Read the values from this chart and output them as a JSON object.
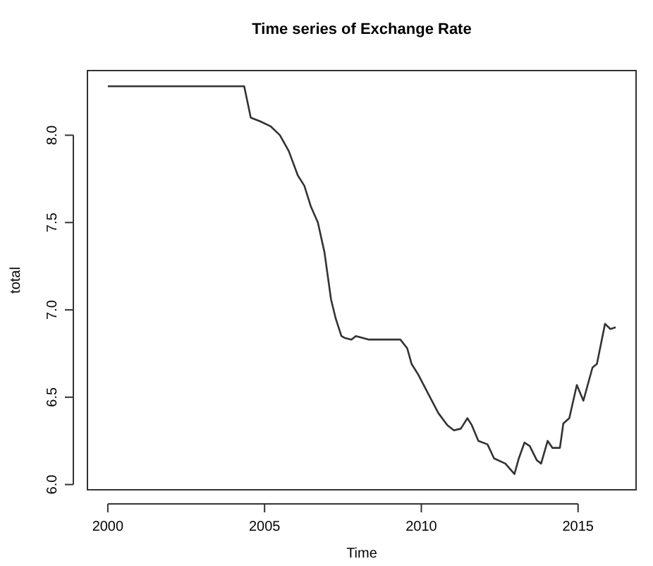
{
  "chart_data": {
    "type": "line",
    "title": "Time series of Exchange Rate",
    "xlabel": "Time",
    "ylabel": "total",
    "x": [
      2000,
      2004.35,
      2004.56,
      2004.85,
      2005.2,
      2005.49,
      2005.77,
      2006.06,
      2006.27,
      2006.48,
      2006.7,
      2006.91,
      2007.12,
      2007.27,
      2007.45,
      2007.55,
      2007.77,
      2007.91,
      2008.33,
      2009.33,
      2009.55,
      2009.69,
      2009.9,
      2010.19,
      2010.54,
      2010.83,
      2011.04,
      2011.26,
      2011.47,
      2011.61,
      2011.82,
      2012.11,
      2012.32,
      2012.68,
      2012.97,
      2013.11,
      2013.29,
      2013.46,
      2013.68,
      2013.82,
      2014.03,
      2014.18,
      2014.42,
      2014.53,
      2014.72,
      2014.96,
      2015.17,
      2015.46,
      2015.6,
      2015.86,
      2016.03,
      2016.2
    ],
    "series": [
      {
        "color": "#333333",
        "values": [
          8.28,
          8.28,
          8.1,
          8.08,
          8.05,
          8.0,
          7.91,
          7.77,
          7.71,
          7.59,
          7.5,
          7.33,
          7.06,
          6.95,
          6.85,
          6.84,
          6.83,
          6.85,
          6.83,
          6.83,
          6.78,
          6.69,
          6.63,
          6.53,
          6.41,
          6.34,
          6.31,
          6.32,
          6.38,
          6.34,
          6.25,
          6.23,
          6.15,
          6.12,
          6.06,
          6.15,
          6.24,
          6.22,
          6.14,
          6.12,
          6.25,
          6.21,
          6.21,
          6.35,
          6.38,
          6.57,
          6.48,
          6.67,
          6.69,
          6.92,
          6.89,
          6.9
        ]
      }
    ],
    "xlim": [
      1999.35,
      2016.85
    ],
    "ylim": [
      5.97,
      8.37
    ],
    "xticks": [
      2000,
      2005,
      2010,
      2015
    ],
    "yticks": [
      {
        "value": 6,
        "label": "6.0"
      },
      {
        "value": 6.5,
        "label": "6.5"
      },
      {
        "value": 7,
        "label": "7.0"
      },
      {
        "value": 7.5,
        "label": "7.5"
      },
      {
        "value": 8,
        "label": "8.0"
      }
    ],
    "line_style": "solid",
    "marker": "none"
  }
}
